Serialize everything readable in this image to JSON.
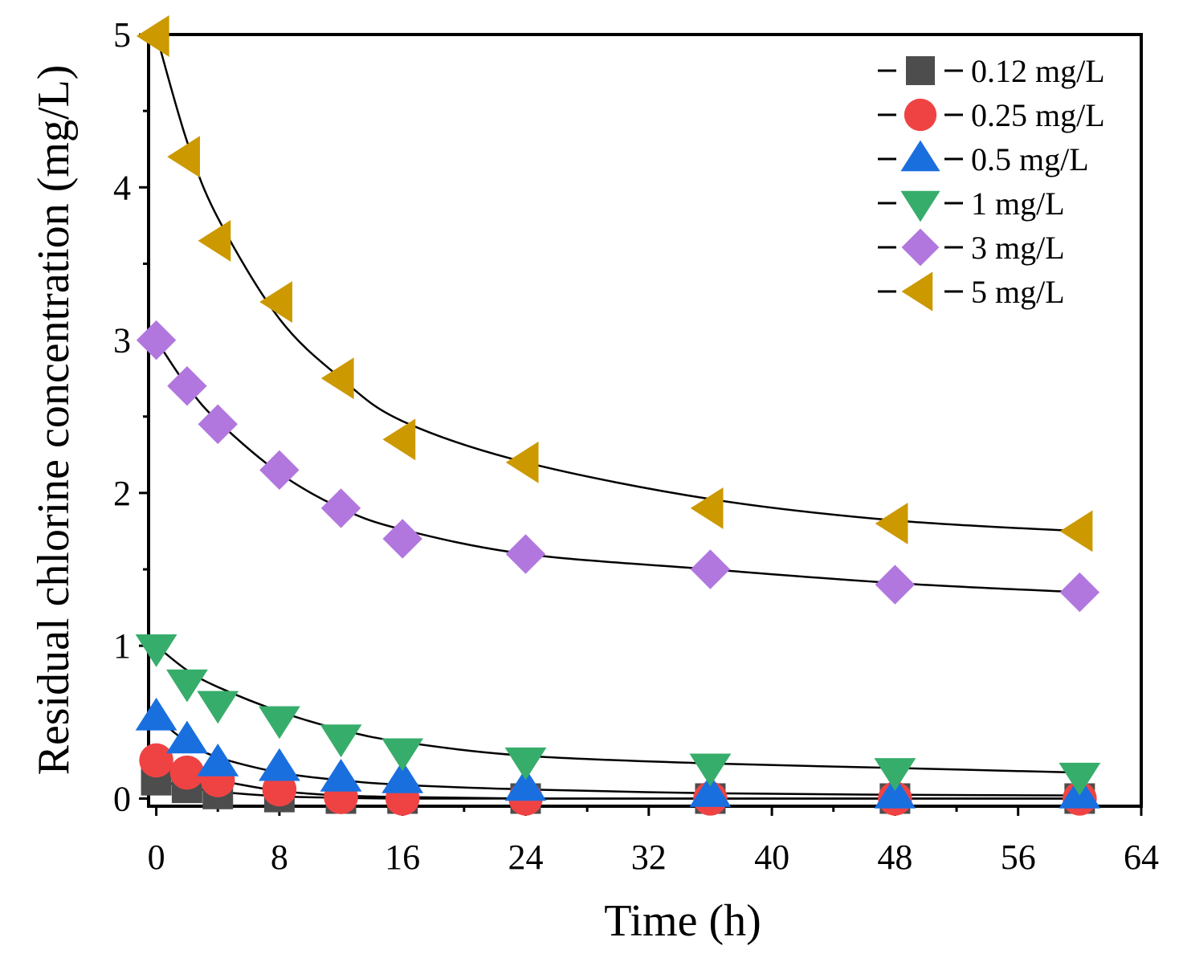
{
  "chart_data": {
    "type": "scatter",
    "title": "",
    "xlabel": "Time (h)",
    "ylabel": "Residual chlorine concentration (mg/L)",
    "xlim": [
      -0.5,
      64
    ],
    "ylim": [
      -0.05,
      5
    ],
    "xticks": [
      0,
      8,
      16,
      24,
      32,
      40,
      48,
      56,
      64
    ],
    "xtick_labels": [
      "0",
      "8",
      "16",
      "24",
      "32",
      "40",
      "48",
      "56",
      "64"
    ],
    "yticks": [
      0,
      1,
      2,
      3,
      4,
      5
    ],
    "ytick_labels": [
      "0",
      "1",
      "2",
      "3",
      "4",
      "5"
    ],
    "grid": false,
    "legend_position": "top-right",
    "x": [
      0,
      2,
      4,
      8,
      12,
      16,
      24,
      36,
      48,
      60
    ],
    "series": [
      {
        "name": "0.12 mg/L",
        "marker": "square",
        "color": "#4d4d4d",
        "values": [
          0.12,
          0.07,
          0.03,
          0.01,
          0.0,
          0.0,
          0.0,
          0.0,
          0.0,
          0.0
        ],
        "fit": [
          0.12,
          0.075,
          0.045,
          0.015,
          0.005,
          0.0,
          0.0,
          0.0,
          0.0,
          0.0
        ]
      },
      {
        "name": "0.25 mg/L",
        "marker": "circle",
        "color": "#ef4343",
        "values": [
          0.25,
          0.17,
          0.12,
          0.06,
          0.01,
          0.0,
          0.0,
          0.0,
          0.0,
          0.0
        ],
        "fit": [
          0.25,
          0.17,
          0.12,
          0.05,
          0.02,
          0.01,
          0.0,
          0.0,
          0.0,
          0.0
        ]
      },
      {
        "name": "0.5 mg/L",
        "marker": "triangle-up",
        "color": "#1a6fdf",
        "values": [
          0.53,
          0.38,
          0.23,
          0.2,
          0.13,
          0.12,
          0.07,
          0.03,
          0.02,
          0.02
        ],
        "fit": [
          0.53,
          0.37,
          0.27,
          0.17,
          0.12,
          0.09,
          0.06,
          0.035,
          0.025,
          0.02
        ]
      },
      {
        "name": "1 mg/L",
        "marker": "triangle-down",
        "color": "#37ad6b",
        "values": [
          0.99,
          0.76,
          0.62,
          0.52,
          0.4,
          0.31,
          0.25,
          0.21,
          0.18,
          0.15
        ],
        "fit": [
          1.0,
          0.84,
          0.73,
          0.57,
          0.45,
          0.37,
          0.28,
          0.23,
          0.2,
          0.17
        ]
      },
      {
        "name": "3 mg/L",
        "marker": "diamond",
        "color": "#b177de",
        "values": [
          3.0,
          2.7,
          2.45,
          2.15,
          1.9,
          1.7,
          1.6,
          1.5,
          1.4,
          1.35
        ],
        "fit": [
          3.0,
          2.7,
          2.47,
          2.13,
          1.9,
          1.76,
          1.6,
          1.5,
          1.41,
          1.35
        ]
      },
      {
        "name": "5 mg/L",
        "marker": "triangle-left",
        "color": "#cc9900",
        "values": [
          4.99,
          4.2,
          3.65,
          3.25,
          2.75,
          2.35,
          2.2,
          1.9,
          1.8,
          1.75
        ],
        "fit": [
          5.0,
          4.3,
          3.8,
          3.14,
          2.75,
          2.47,
          2.2,
          1.96,
          1.82,
          1.75
        ]
      }
    ]
  }
}
